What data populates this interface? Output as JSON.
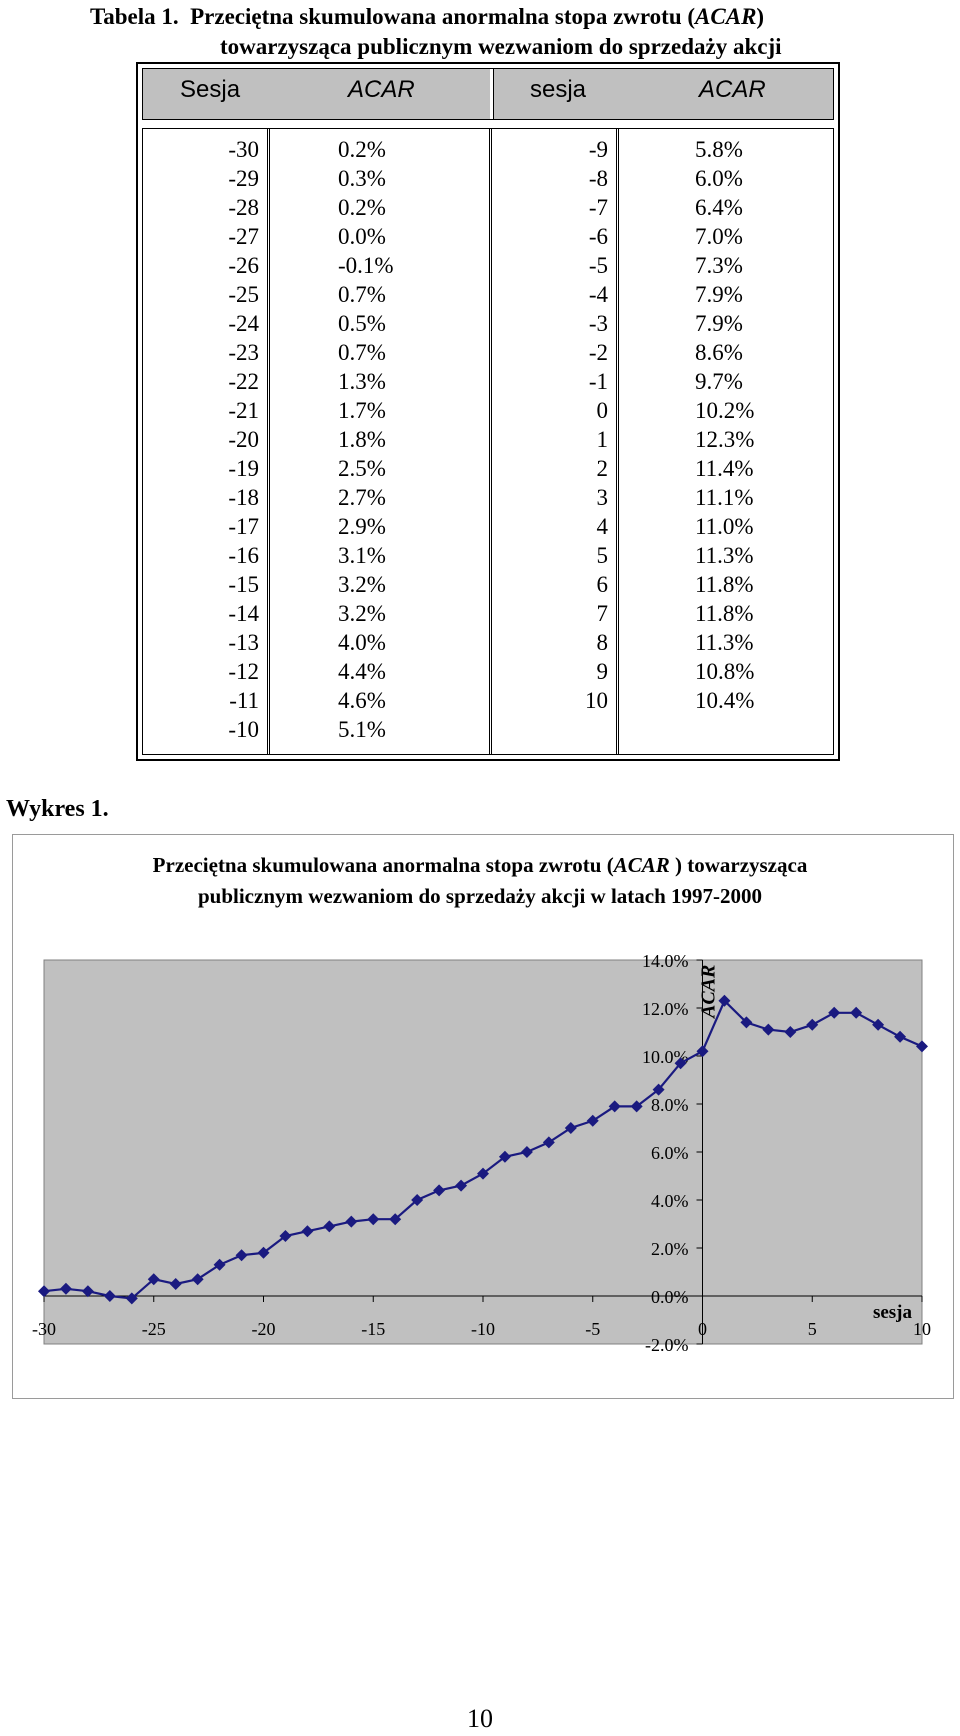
{
  "table": {
    "caption_prefix": "Tabela 1.",
    "caption_line1": "Przeciętna skumulowana anormalna stopa zwrotu (",
    "caption_acar": "ACAR",
    "caption_line1_end": ")",
    "caption_line2": "towarzysząca publicznym wezwaniom do sprzedaży akcji",
    "headers": [
      "Sesja",
      "ACAR",
      "sesja",
      "ACAR"
    ],
    "left": [
      [
        "-30",
        "0.2%"
      ],
      [
        "-29",
        "0.3%"
      ],
      [
        "-28",
        "0.2%"
      ],
      [
        "-27",
        "0.0%"
      ],
      [
        "-26",
        "-0.1%"
      ],
      [
        "-25",
        "0.7%"
      ],
      [
        "-24",
        "0.5%"
      ],
      [
        "-23",
        "0.7%"
      ],
      [
        "-22",
        "1.3%"
      ],
      [
        "-21",
        "1.7%"
      ],
      [
        "-20",
        "1.8%"
      ],
      [
        "-19",
        "2.5%"
      ],
      [
        "-18",
        "2.7%"
      ],
      [
        "-17",
        "2.9%"
      ],
      [
        "-16",
        "3.1%"
      ],
      [
        "-15",
        "3.2%"
      ],
      [
        "-14",
        "3.2%"
      ],
      [
        "-13",
        "4.0%"
      ],
      [
        "-12",
        "4.4%"
      ],
      [
        "-11",
        "4.6%"
      ],
      [
        "-10",
        "5.1%"
      ]
    ],
    "right": [
      [
        "-9",
        "5.8%"
      ],
      [
        "-8",
        "6.0%"
      ],
      [
        "-7",
        "6.4%"
      ],
      [
        "-6",
        "7.0%"
      ],
      [
        "-5",
        "7.3%"
      ],
      [
        "-4",
        "7.9%"
      ],
      [
        "-3",
        "7.9%"
      ],
      [
        "-2",
        "8.6%"
      ],
      [
        "-1",
        "9.7%"
      ],
      [
        "0",
        "10.2%"
      ],
      [
        "1",
        "12.3%"
      ],
      [
        "2",
        "11.4%"
      ],
      [
        "3",
        "11.1%"
      ],
      [
        "4",
        "11.0%"
      ],
      [
        "5",
        "11.3%"
      ],
      [
        "6",
        "11.8%"
      ],
      [
        "7",
        "11.8%"
      ],
      [
        "8",
        "11.3%"
      ],
      [
        "9",
        "10.8%"
      ],
      [
        "10",
        "10.4%"
      ]
    ]
  },
  "figure": {
    "label": "Wykres 1.",
    "title_line1_pre": "Przeciętna skumulowana anormalna stopa zwrotu (",
    "title_acar": "ACAR",
    "title_line1_post": " ) towarzysząca",
    "title_line2": "publicznym wezwaniom do sprzedaży akcji w latach 1997-2000"
  },
  "chart_data": {
    "type": "line",
    "title": "Przeciętna skumulowana anormalna stopa zwrotu (ACAR ) towarzysząca publicznym wezwaniom do sprzedaży akcji w latach 1997-2000",
    "xlabel": "sesja",
    "ylabel": "ACAR",
    "xlim": [
      -30,
      10
    ],
    "ylim": [
      -2.0,
      14.0
    ],
    "x_ticks": [
      "-30",
      "-25",
      "-20",
      "-15",
      "-10",
      "-5",
      "0",
      "5",
      "10"
    ],
    "y_ticks": [
      "14.0%",
      "12.0%",
      "10.0%",
      "8.0%",
      "6.0%",
      "4.0%",
      "2.0%",
      "0.0%",
      "-2.0%"
    ],
    "x": [
      -30,
      -29,
      -28,
      -27,
      -26,
      -25,
      -24,
      -23,
      -22,
      -21,
      -20,
      -19,
      -18,
      -17,
      -16,
      -15,
      -14,
      -13,
      -12,
      -11,
      -10,
      -9,
      -8,
      -7,
      -6,
      -5,
      -4,
      -3,
      -2,
      -1,
      0,
      1,
      2,
      3,
      4,
      5,
      6,
      7,
      8,
      9,
      10
    ],
    "y": [
      0.2,
      0.3,
      0.2,
      0.0,
      -0.1,
      0.7,
      0.5,
      0.7,
      1.3,
      1.7,
      1.8,
      2.5,
      2.7,
      2.9,
      3.1,
      3.2,
      3.2,
      4.0,
      4.4,
      4.6,
      5.1,
      5.8,
      6.0,
      6.4,
      7.0,
      7.3,
      7.9,
      7.9,
      8.6,
      9.7,
      10.2,
      12.3,
      11.4,
      11.1,
      11.0,
      11.3,
      11.8,
      11.8,
      11.3,
      10.8,
      10.4
    ],
    "line_color": "#1a1a80",
    "plot_bg": "#c0c0c0",
    "grid": false
  },
  "page": {
    "number": "10"
  }
}
